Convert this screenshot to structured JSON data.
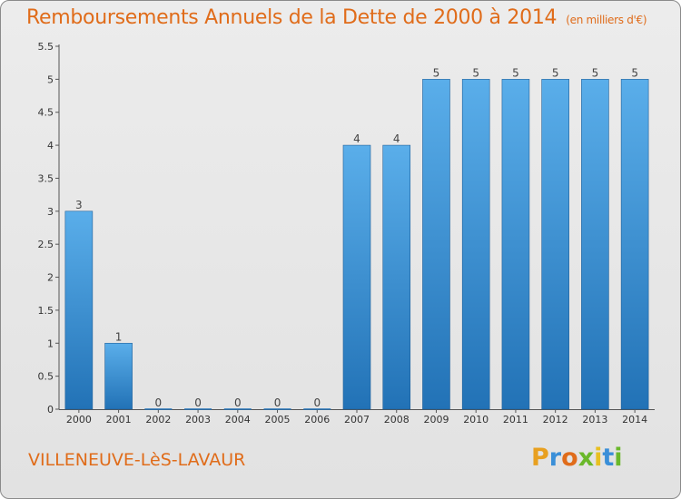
{
  "chart_title": "Remboursements Annuels de la Dette de 2000 à 2014",
  "chart_unit": "(en milliers d'€)",
  "city_name": "VILLENEUVE-LèS-LAVAUR",
  "logo": {
    "letters": [
      "P",
      "r",
      "o",
      "x",
      "i",
      "t",
      "i"
    ],
    "colors": [
      "#e8a020",
      "#3a8fd8",
      "#e06c1a",
      "#6ab82a",
      "#e8c020",
      "#3a8fd8",
      "#6ab82a"
    ]
  },
  "colors": {
    "bar_light": "#5aaeea",
    "bar_dark": "#2272b6",
    "title": "#e06c1a"
  },
  "chart_data": {
    "type": "bar",
    "title": "Remboursements Annuels de la Dette de 2000 à 2014",
    "ylabel": "",
    "xlabel": "",
    "categories": [
      "2000",
      "2001",
      "2002",
      "2003",
      "2004",
      "2005",
      "2006",
      "2007",
      "2008",
      "2009",
      "2010",
      "2011",
      "2012",
      "2013",
      "2014"
    ],
    "values": [
      3,
      1,
      0,
      0,
      0,
      0,
      0,
      4,
      4,
      5,
      5,
      5,
      5,
      5,
      5
    ],
    "value_labels": [
      "3",
      "1",
      "0",
      "0",
      "0",
      "0",
      "0",
      "4",
      "4",
      "5",
      "5",
      "5",
      "5",
      "5",
      "5"
    ],
    "yticks": [
      0,
      0.5,
      1,
      1.5,
      2,
      2.5,
      3,
      3.5,
      4,
      4.5,
      5,
      5.5
    ],
    "ytick_labels": [
      "0",
      "0.5",
      "1",
      "1.5",
      "2",
      "2.5",
      "3",
      "3.5",
      "4",
      "4.5",
      "5",
      "5.5"
    ],
    "ylim": [
      0,
      5.5
    ],
    "grid": false,
    "legend": "none"
  }
}
